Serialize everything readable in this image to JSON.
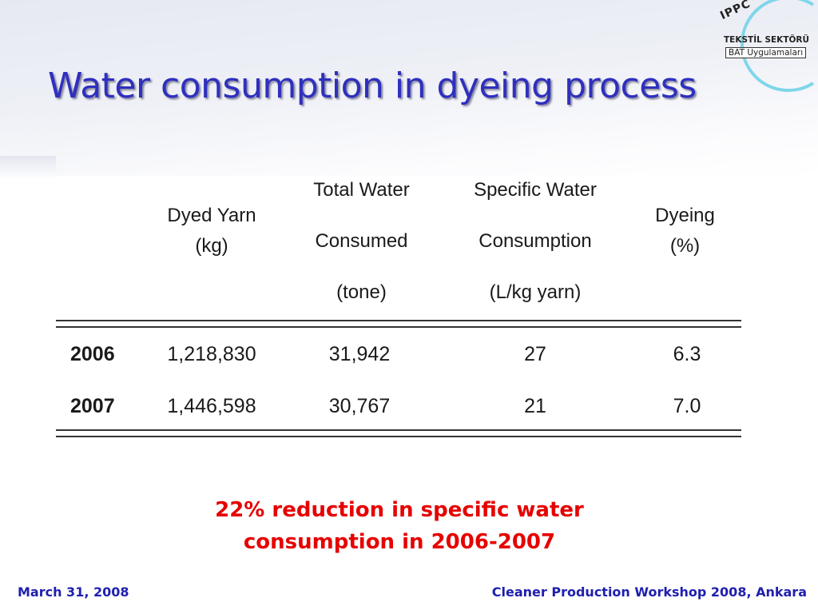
{
  "slide": {
    "title": "Water consumption in dyeing process",
    "note_line1": "22% reduction in specific water",
    "note_line2": "consumption in 2006-2007",
    "footer_left": "March 31, 2008",
    "footer_right": "Cleaner Production Workshop 2008, Ankara"
  },
  "logo": {
    "top": "IPPC",
    "line1": "TEKSTİL SEKTÖRÜ",
    "line2": "BAT Uygulamaları",
    "ring_color": "#7fd6ea"
  },
  "table": {
    "headers": [
      {
        "lines": [
          "Dyed Yarn",
          "(kg)"
        ]
      },
      {
        "lines": [
          "Total Water",
          "Consumed",
          "(tone)"
        ]
      },
      {
        "lines": [
          "Specific Water",
          "Consumption",
          "(L/kg yarn)"
        ]
      },
      {
        "lines": [
          "Dyeing",
          "(%)"
        ]
      }
    ],
    "rows": [
      {
        "year": "2006",
        "yarn": "1,218,830",
        "water": "31,942",
        "specific": "27",
        "dyeing": "6.3"
      },
      {
        "year": "2007",
        "yarn": "1,446,598",
        "water": "30,767",
        "specific": "21",
        "dyeing": "7.0"
      }
    ]
  },
  "colors": {
    "title": "#2f2fbf",
    "note": "#e60000",
    "footer": "#1f1fae"
  }
}
